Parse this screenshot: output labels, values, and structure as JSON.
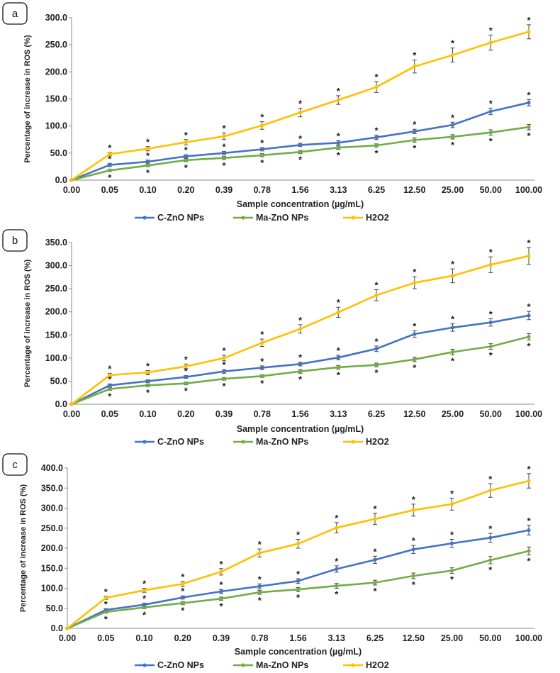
{
  "colors": {
    "C": "#4472C4",
    "M": "#70AD47",
    "H": "#FFC000",
    "axis": "#888888",
    "text": "#222222",
    "star": "#222222"
  },
  "chart_data": [
    {
      "panel": "a",
      "type": "line",
      "categories": [
        "0.00",
        "0.05",
        "0.10",
        "0.20",
        "0.39",
        "0.78",
        "1.56",
        "3.13",
        "6.25",
        "12.50",
        "25.00",
        "50.00",
        "100.00"
      ],
      "xlabel": "Sample concentration (µg/mL)",
      "ylabel": "Percentage of increase in ROS (%)",
      "ylim": [
        0,
        300
      ],
      "ystep": 50,
      "yticks": [
        "0.0",
        "50.0",
        "100.0",
        "150.0",
        "200.0",
        "250.0",
        "300.0"
      ],
      "series": [
        {
          "name": "C-ZnO NPs",
          "key": "C",
          "values": [
            0,
            28,
            34,
            44,
            50,
            57,
            65,
            69,
            79,
            90,
            102,
            127,
            143
          ],
          "errors": [
            0,
            3,
            3,
            3,
            3,
            3,
            3,
            4,
            4,
            4,
            5,
            6,
            6
          ],
          "star_above": true,
          "star_below": false
        },
        {
          "name": "Ma-ZnO NPs",
          "key": "M",
          "values": [
            0,
            18,
            27,
            37,
            41,
            46,
            52,
            60,
            64,
            74,
            80,
            88,
            98
          ],
          "errors": [
            0,
            2,
            2,
            3,
            3,
            3,
            3,
            3,
            3,
            4,
            4,
            5,
            5
          ],
          "star_above": false,
          "star_below": true
        },
        {
          "name": "H2O2",
          "key": "H",
          "values": [
            0,
            48,
            58,
            70,
            81,
            101,
            125,
            148,
            172,
            210,
            231,
            254,
            274
          ],
          "errors": [
            0,
            3,
            4,
            5,
            6,
            7,
            8,
            8,
            10,
            12,
            13,
            14,
            13
          ],
          "star_above": true,
          "star_below": false
        }
      ]
    },
    {
      "panel": "b",
      "type": "line",
      "categories": [
        "0.00",
        "0.05",
        "0.10",
        "0.20",
        "0.39",
        "0.78",
        "1.56",
        "3.13",
        "6.25",
        "12.50",
        "25.00",
        "50.00",
        "100.00"
      ],
      "xlabel": "Sample concentration (µg/mL)",
      "ylabel": "Percentage of increase in ROS (%)",
      "ylim": [
        0,
        350
      ],
      "ystep": 50,
      "yticks": [
        "0.0",
        "50.0",
        "100.0",
        "150.0",
        "200.0",
        "250.0",
        "300.0",
        "350.0"
      ],
      "series": [
        {
          "name": "C-ZnO NPs",
          "key": "C",
          "values": [
            0,
            41,
            50,
            59,
            71,
            79,
            87,
            101,
            120,
            152,
            166,
            177,
            192
          ],
          "errors": [
            0,
            3,
            3,
            3,
            4,
            4,
            4,
            5,
            6,
            7,
            8,
            8,
            9
          ],
          "star_above": true,
          "star_below": false
        },
        {
          "name": "Ma-ZnO NPs",
          "key": "M",
          "values": [
            0,
            33,
            41,
            45,
            55,
            61,
            71,
            80,
            85,
            97,
            113,
            125,
            146
          ],
          "errors": [
            0,
            3,
            3,
            3,
            3,
            3,
            4,
            4,
            4,
            5,
            6,
            6,
            7
          ],
          "star_above": false,
          "star_below": true
        },
        {
          "name": "H2O2",
          "key": "H",
          "values": [
            0,
            63,
            69,
            82,
            100,
            133,
            163,
            199,
            236,
            263,
            278,
            302,
            321
          ],
          "errors": [
            0,
            4,
            4,
            5,
            6,
            8,
            9,
            11,
            12,
            13,
            15,
            17,
            18
          ],
          "star_above": true,
          "star_below": false
        }
      ]
    },
    {
      "panel": "c",
      "type": "line",
      "categories": [
        "0.00",
        "0.05",
        "0.10",
        "0.20",
        "0.39",
        "0.78",
        "1.56",
        "3.13",
        "6.25",
        "12.50",
        "25.00",
        "50.00",
        "100.00"
      ],
      "xlabel": "Sample concentration (µg/mL)",
      "ylabel": "Percentage of increase in ROS (%)",
      "ylim": [
        0,
        400
      ],
      "ystep": 50,
      "yticks": [
        "0.0",
        "50.0",
        "100.0",
        "150.0",
        "200.0",
        "250.0",
        "300.0",
        "350.0",
        "400.0"
      ],
      "series": [
        {
          "name": "C-ZnO NPs",
          "key": "C",
          "values": [
            0,
            46,
            59,
            77,
            92,
            105,
            118,
            148,
            171,
            197,
            212,
            226,
            245
          ],
          "errors": [
            0,
            3,
            4,
            4,
            5,
            6,
            6,
            8,
            9,
            10,
            10,
            11,
            12
          ],
          "star_above": true,
          "star_below": false
        },
        {
          "name": "Ma-ZnO NPs",
          "key": "M",
          "values": [
            0,
            41,
            52,
            63,
            74,
            90,
            97,
            106,
            114,
            131,
            144,
            170,
            193
          ],
          "errors": [
            0,
            3,
            3,
            4,
            4,
            5,
            5,
            6,
            6,
            7,
            7,
            9,
            10
          ],
          "star_above": false,
          "star_below": true
        },
        {
          "name": "H2O2",
          "key": "H",
          "values": [
            0,
            76,
            95,
            111,
            141,
            188,
            211,
            251,
            273,
            295,
            310,
            344,
            368
          ],
          "errors": [
            0,
            4,
            5,
            6,
            8,
            10,
            11,
            13,
            14,
            15,
            15,
            17,
            18
          ],
          "star_above": true,
          "star_below": false
        }
      ]
    }
  ]
}
